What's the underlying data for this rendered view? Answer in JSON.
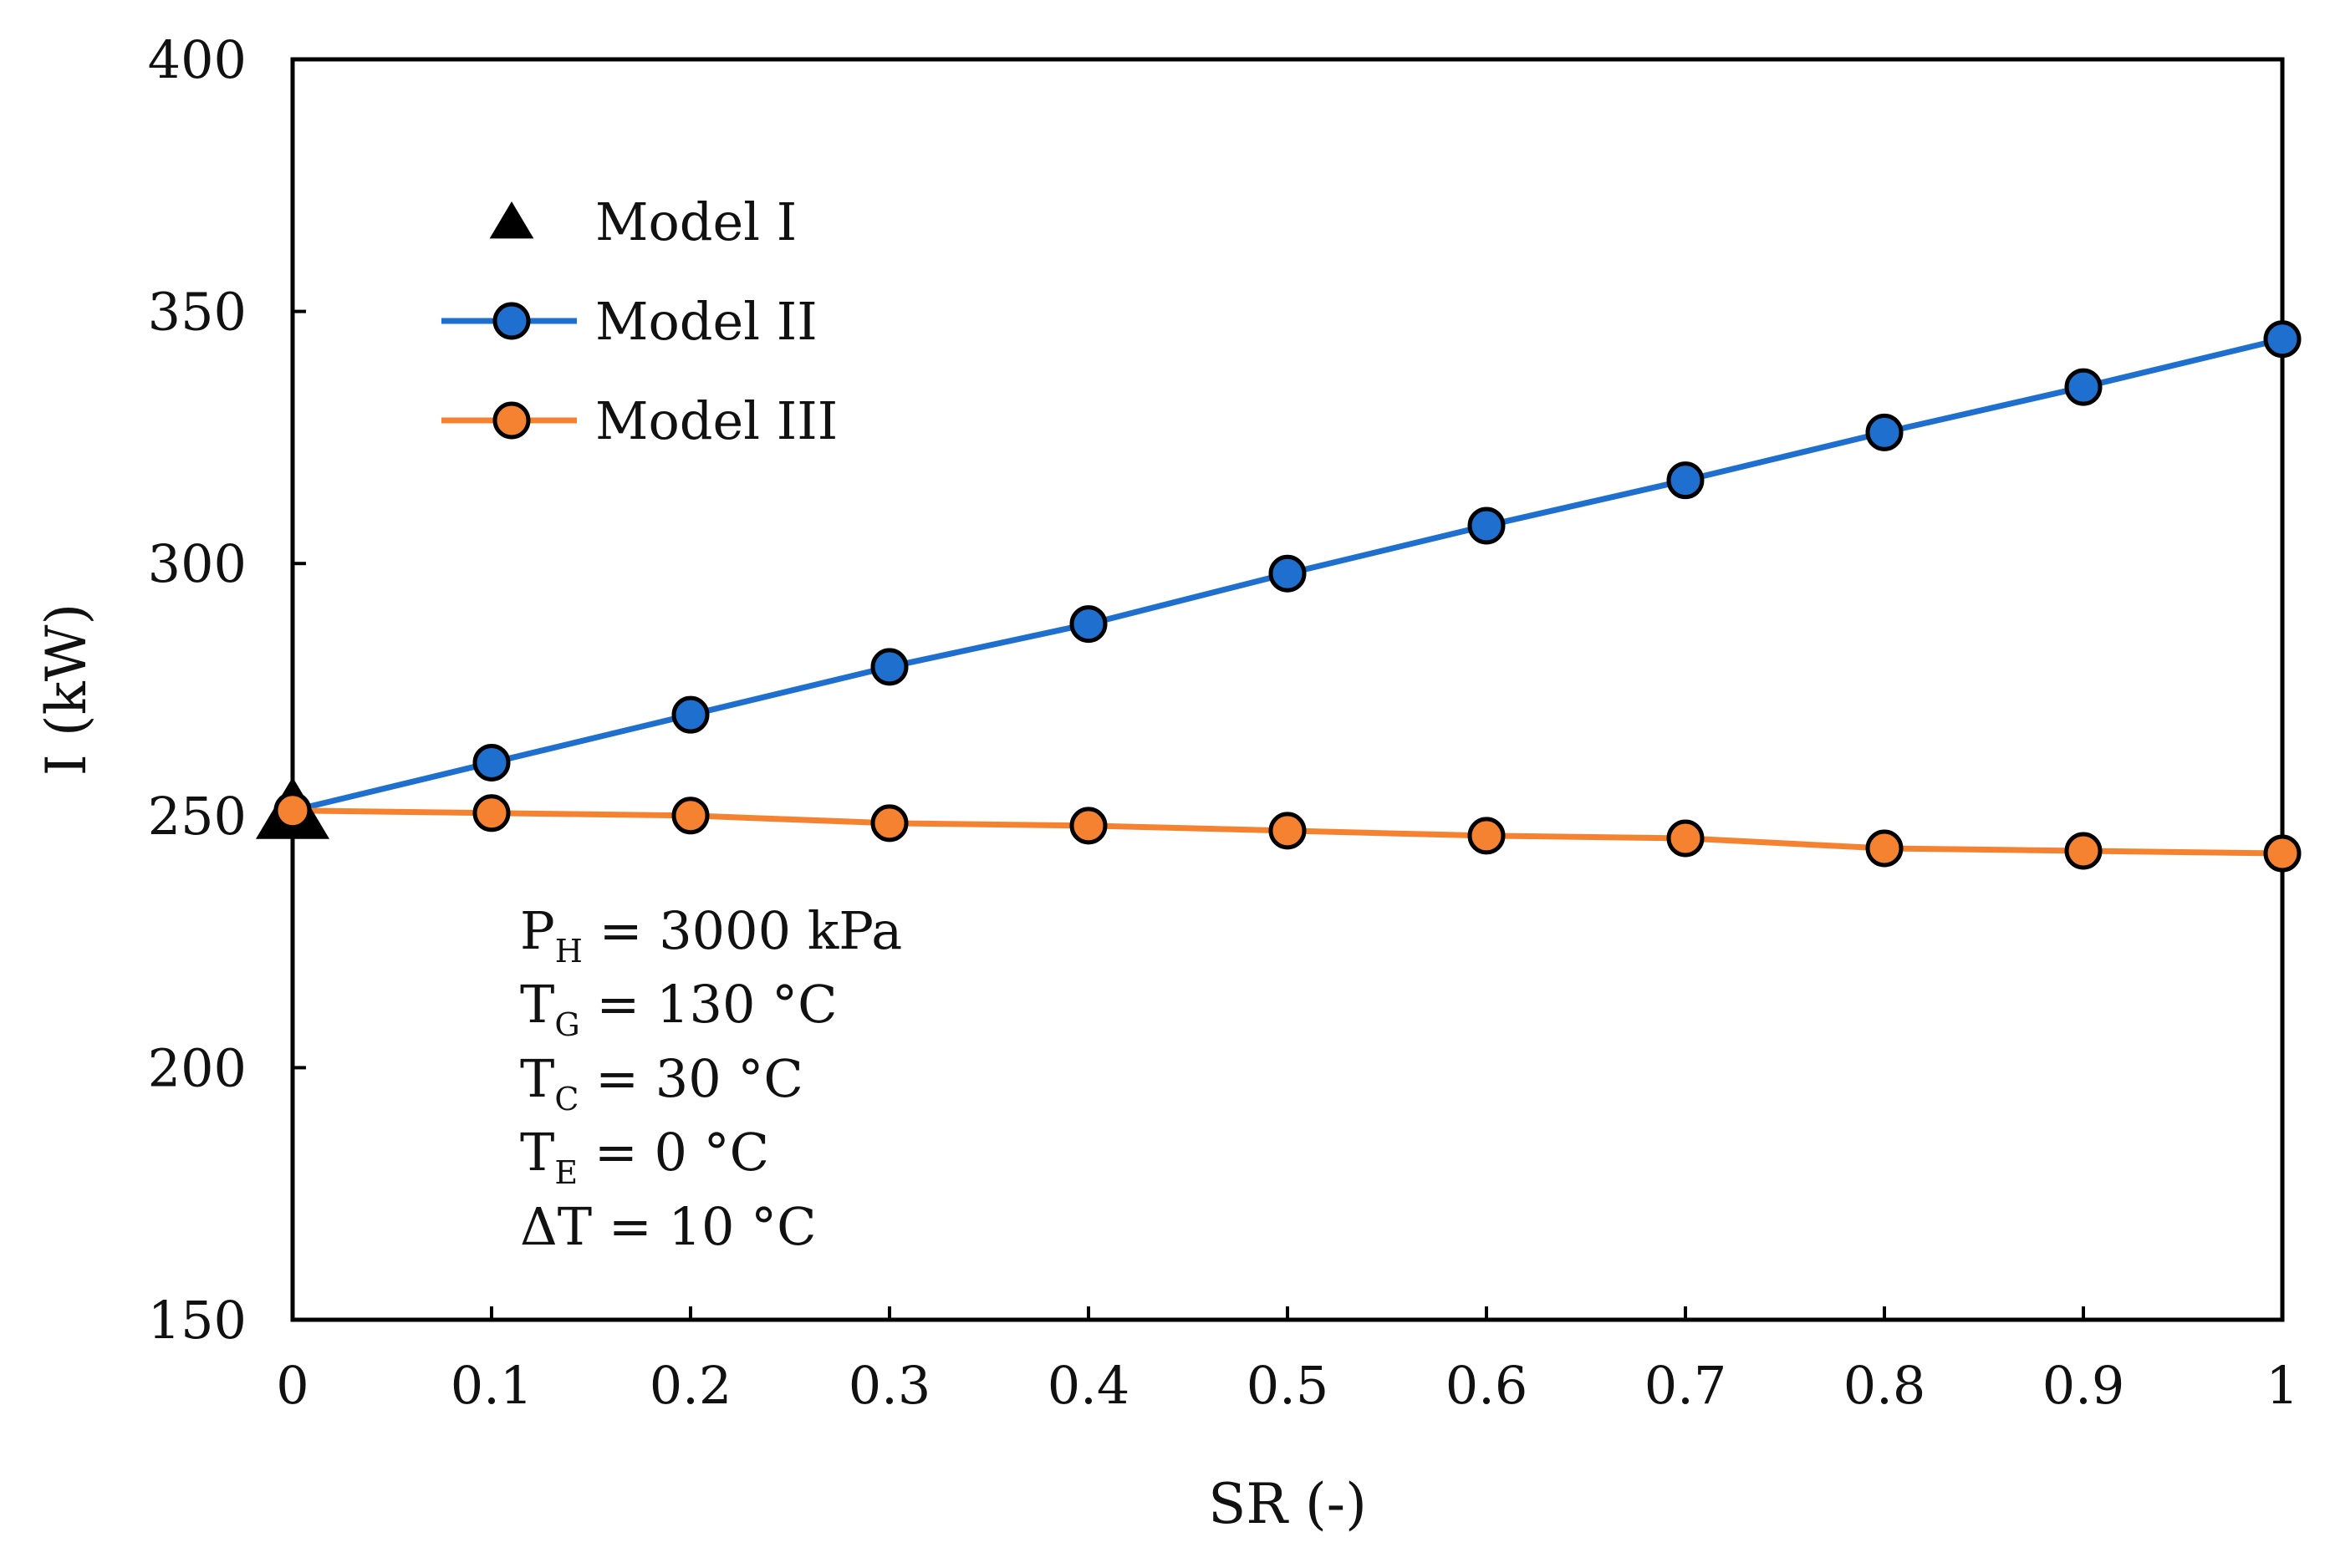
{
  "chart_data": {
    "type": "line",
    "title": "",
    "xlabel": "SR (-)",
    "ylabel": "I (kW)",
    "xlim": [
      0,
      1
    ],
    "ylim": [
      150,
      400
    ],
    "xticks": [
      0,
      0.1,
      0.2,
      0.3,
      0.4,
      0.5,
      0.6,
      0.7,
      0.8,
      0.9,
      1
    ],
    "xtick_labels": [
      "0",
      "0.1",
      "0.2",
      "0.3",
      "0.4",
      "0.5",
      "0.6",
      "0.7",
      "0.8",
      "0.9",
      "1"
    ],
    "yticks": [
      150,
      200,
      250,
      300,
      350,
      400
    ],
    "ytick_labels": [
      "150",
      "200",
      "250",
      "300",
      "350",
      "400"
    ],
    "grid": false,
    "legend_position": "top-left",
    "series": [
      {
        "name": "Model I",
        "marker": "triangle",
        "line": false,
        "color": "#000000",
        "x": [
          0
        ],
        "y": [
          251
        ]
      },
      {
        "name": "Model II",
        "marker": "circle",
        "line": true,
        "color": "#1f6fce",
        "x": [
          0,
          0.1,
          0.2,
          0.3,
          0.4,
          0.5,
          0.6,
          0.7,
          0.8,
          0.9,
          1
        ],
        "y": [
          251,
          260.5,
          270,
          279.5,
          288,
          298,
          307.5,
          316.5,
          326,
          335,
          344.5
        ]
      },
      {
        "name": "Model III",
        "marker": "circle",
        "line": true,
        "color": "#f58230",
        "x": [
          0,
          0.1,
          0.2,
          0.3,
          0.4,
          0.5,
          0.6,
          0.7,
          0.8,
          0.9,
          1
        ],
        "y": [
          251,
          250.5,
          250,
          248.5,
          248,
          247,
          246,
          245.5,
          243.5,
          243,
          242.5
        ]
      }
    ],
    "annotations": [
      {
        "main": "P",
        "sub": "H",
        "rest": " = 3000 kPa"
      },
      {
        "main": "T",
        "sub": "G",
        "rest": " = 130 °C"
      },
      {
        "main": "T",
        "sub": "C",
        "rest": " = 30 °C"
      },
      {
        "main": "T",
        "sub": "E",
        "rest": " = 0 °C"
      },
      {
        "main": "ΔT",
        "sub": "",
        "rest": " = 10 °C"
      }
    ]
  }
}
